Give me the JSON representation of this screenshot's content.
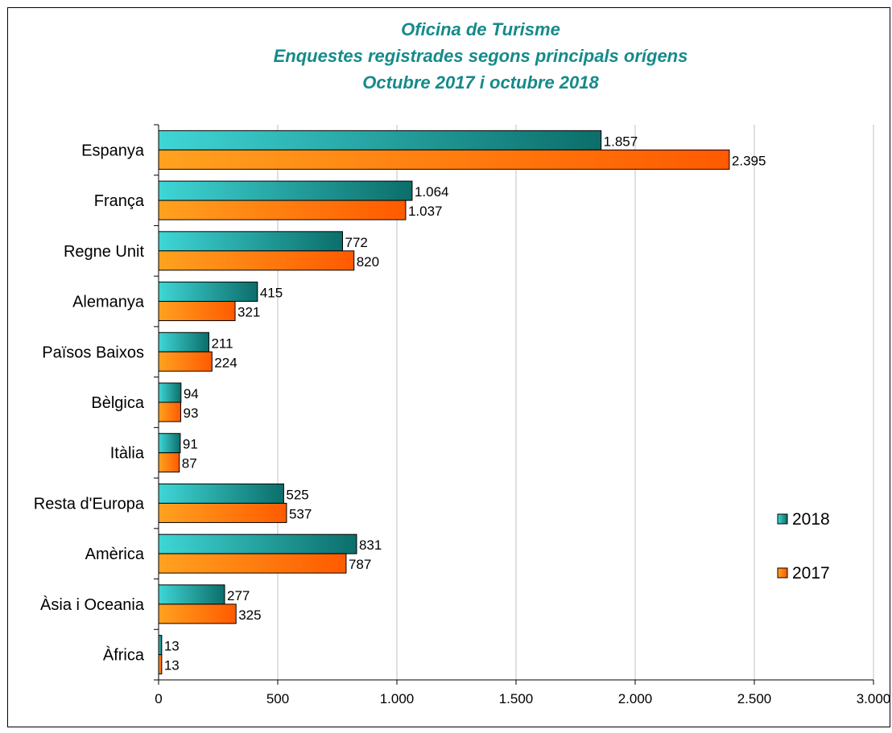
{
  "chart_data": {
    "type": "bar",
    "orientation": "horizontal",
    "title": [
      "Oficina de Turisme",
      "Enquestes registrades segons principals orígens",
      "Octubre 2017 i octubre 2018"
    ],
    "categories": [
      "Espanya",
      "França",
      "Regne Unit",
      "Alemanya",
      "Països Baixos",
      "Bèlgica",
      "Itàlia",
      "Resta d'Europa",
      "Amèrica",
      "Àsia i Oceania",
      "Àfrica"
    ],
    "series": [
      {
        "name": "2018",
        "values": [
          1857,
          1064,
          772,
          415,
          211,
          94,
          91,
          525,
          831,
          277,
          13
        ],
        "labels": [
          "1.857",
          "1.064",
          "772",
          "415",
          "211",
          "94",
          "91",
          "525",
          "831",
          "277",
          "13"
        ],
        "color": "#1a8f8a"
      },
      {
        "name": "2017",
        "values": [
          2395,
          1037,
          820,
          321,
          224,
          93,
          87,
          537,
          787,
          325,
          13
        ],
        "labels": [
          "2.395",
          "1.037",
          "820",
          "321",
          "224",
          "93",
          "87",
          "537",
          "787",
          "325",
          "13"
        ],
        "color": "#ff6a00"
      }
    ],
    "xlim": [
      0,
      3000
    ],
    "xticks": [
      0,
      500,
      1000,
      1500,
      2000,
      2500,
      3000
    ],
    "xtick_labels": [
      "0",
      "500",
      "1.000",
      "1.500",
      "2.000",
      "2.500",
      "3.000"
    ],
    "grid": true,
    "legend_position": "right",
    "xlabel": "",
    "ylabel": ""
  }
}
